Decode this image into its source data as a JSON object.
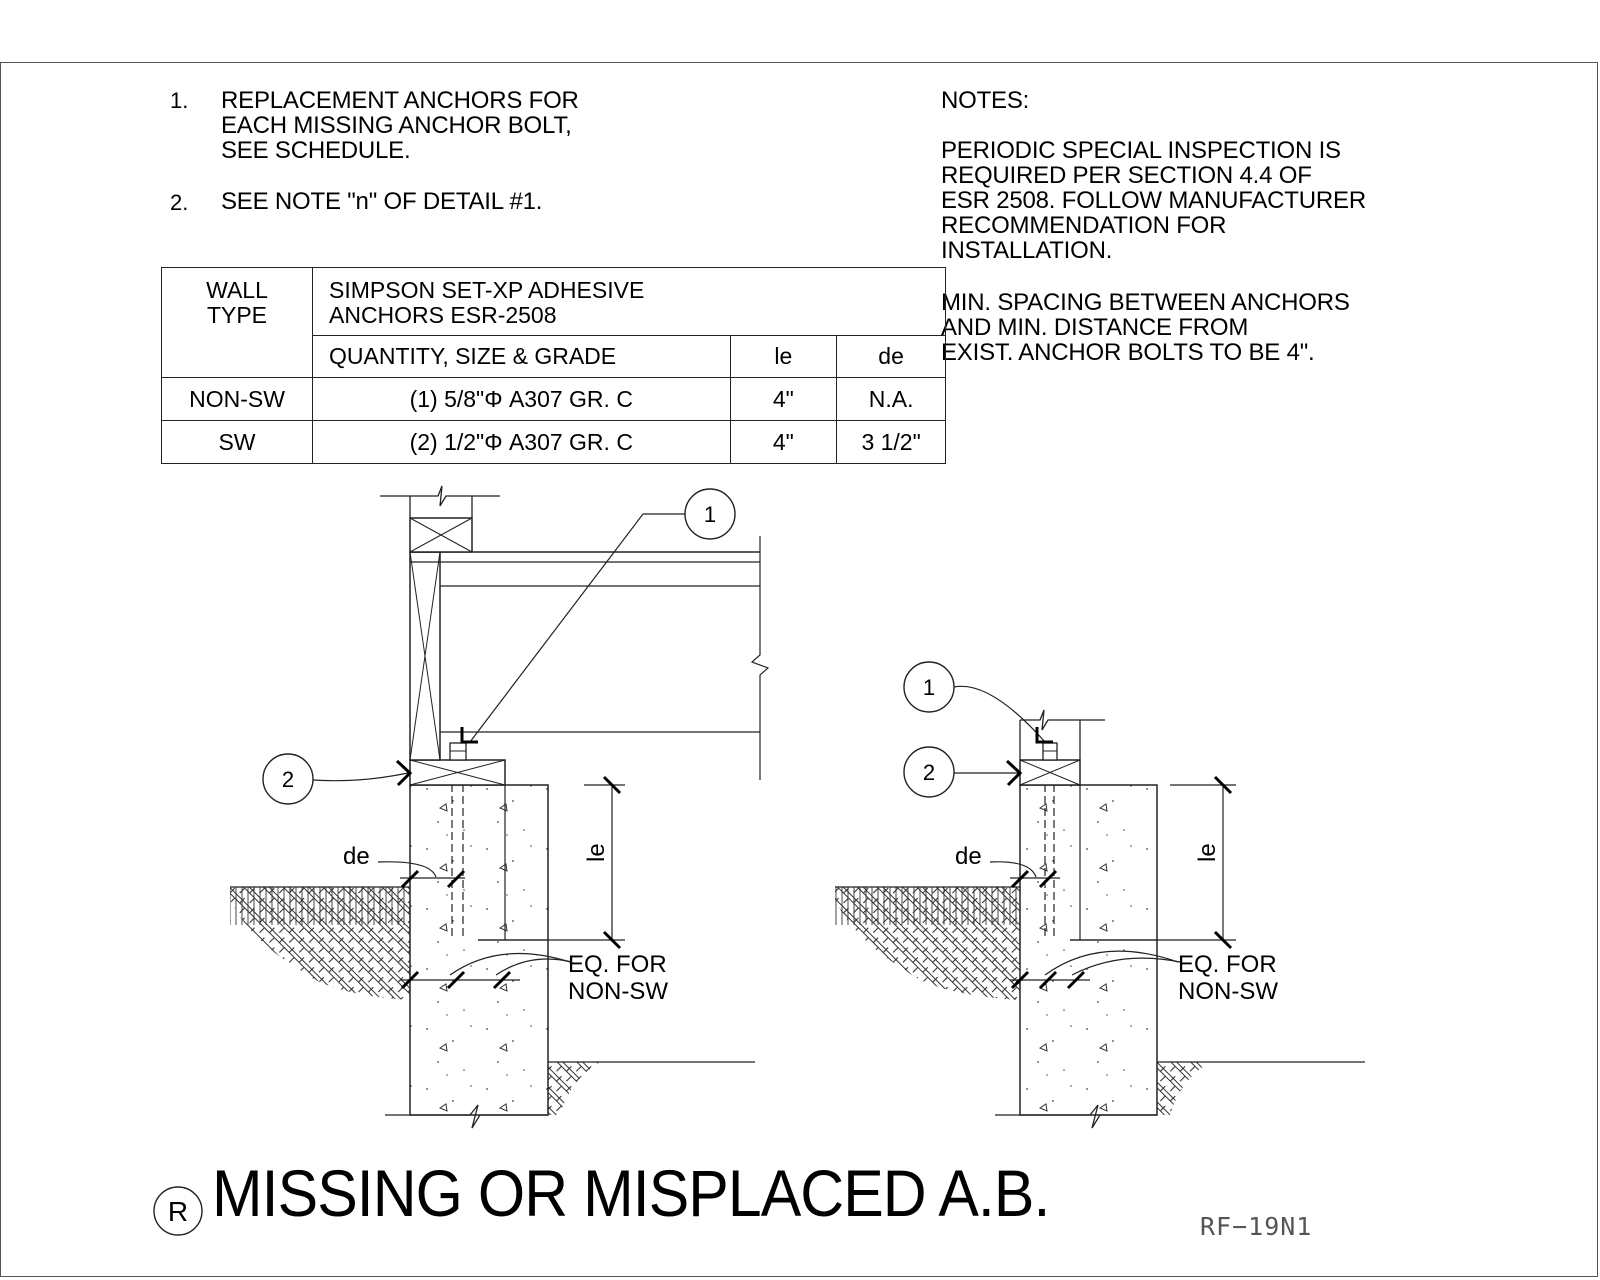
{
  "notes_list": [
    {
      "num": "1.",
      "lines": [
        "REPLACEMENT ANCHORS FOR",
        "EACH MISSING ANCHOR BOLT,",
        "SEE SCHEDULE."
      ]
    },
    {
      "num": "2.",
      "lines": [
        "SEE NOTE \"n\" OF DETAIL #1."
      ]
    }
  ],
  "notes_box": {
    "heading": "NOTES:",
    "para1": [
      "PERIODIC SPECIAL INSPECTION IS",
      "REQUIRED PER SECTION 4.4 OF",
      "ESR 2508. FOLLOW MANUFACTURER",
      "RECOMMENDATION FOR",
      "INSTALLATION."
    ],
    "para2": [
      "MIN. SPACING BETWEEN ANCHORS",
      "AND MIN. DISTANCE FROM",
      "EXIST. ANCHOR BOLTS TO BE 4\"."
    ]
  },
  "schedule": {
    "header_wall_type": [
      "WALL",
      "TYPE"
    ],
    "header_anchor": [
      "SIMPSON SET-XP ADHESIVE",
      "ANCHORS ESR-2508"
    ],
    "header_qty": "QUANTITY, SIZE & GRADE",
    "header_le": "le",
    "header_de": "de",
    "rows": [
      {
        "wall": "NON-SW",
        "qty": "(1) 5/8\"Φ A307 GR. C",
        "le": "4\"",
        "de": "N.A."
      },
      {
        "wall": "SW",
        "qty": "(2) 1/2\"Φ A307 GR. C",
        "le": "4\"",
        "de": "3 1/2\""
      }
    ]
  },
  "details": {
    "left": {
      "callout_1": "1",
      "callout_2": "2",
      "label_de": "de",
      "label_le": "le",
      "note": [
        "EQ. FOR",
        "NON-SW"
      ]
    },
    "right": {
      "callout_1": "1",
      "callout_2": "2",
      "label_de": "de",
      "label_le": "le",
      "note": [
        "EQ. FOR",
        "NON-SW"
      ]
    }
  },
  "title": {
    "symbol": "R",
    "text": "MISSING OR MISPLACED A.B."
  },
  "drawing_number": "RF−19N1"
}
